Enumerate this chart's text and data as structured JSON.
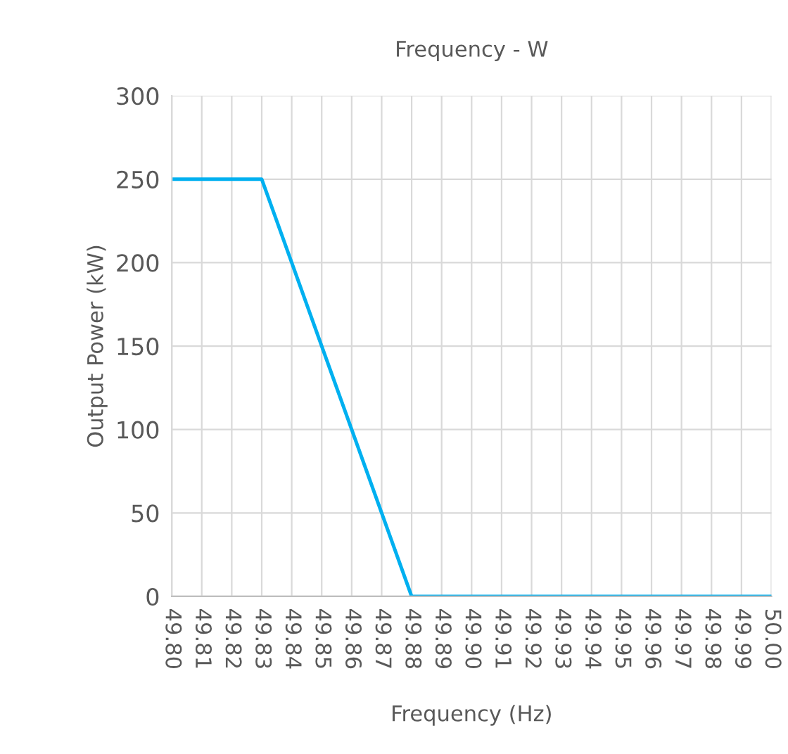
{
  "chart_data": {
    "type": "line",
    "title": "Frequency - W",
    "xlabel": "Frequency (Hz)",
    "ylabel": "Output Power (kW)",
    "x": [
      49.8,
      49.83,
      49.88,
      50.0
    ],
    "series": [
      {
        "color": "#00b0f0",
        "values": [
          250,
          250,
          0,
          0
        ]
      }
    ],
    "xlim": [
      49.8,
      50.0
    ],
    "xticks": [
      {
        "value": 49.8,
        "label": "49.80"
      },
      {
        "value": 49.81,
        "label": "49.81"
      },
      {
        "value": 49.82,
        "label": "49.82"
      },
      {
        "value": 49.83,
        "label": "49.83"
      },
      {
        "value": 49.84,
        "label": "49.84"
      },
      {
        "value": 49.85,
        "label": "49.85"
      },
      {
        "value": 49.86,
        "label": "49.86"
      },
      {
        "value": 49.87,
        "label": "49.87"
      },
      {
        "value": 49.88,
        "label": "49.88"
      },
      {
        "value": 49.89,
        "label": "49.89"
      },
      {
        "value": 49.9,
        "label": "49.90"
      },
      {
        "value": 49.91,
        "label": "49.91"
      },
      {
        "value": 49.92,
        "label": "49.92"
      },
      {
        "value": 49.93,
        "label": "49.93"
      },
      {
        "value": 49.94,
        "label": "49.94"
      },
      {
        "value": 49.95,
        "label": "49.95"
      },
      {
        "value": 49.96,
        "label": "49.96"
      },
      {
        "value": 49.97,
        "label": "49.97"
      },
      {
        "value": 49.98,
        "label": "49.98"
      },
      {
        "value": 49.99,
        "label": "49.99"
      },
      {
        "value": 50.0,
        "label": "50.00"
      }
    ],
    "ylim": [
      0,
      300
    ],
    "yticks": [
      0,
      50,
      100,
      150,
      200,
      250,
      300
    ],
    "grid": true,
    "marker": "none",
    "line_style": "solid"
  }
}
